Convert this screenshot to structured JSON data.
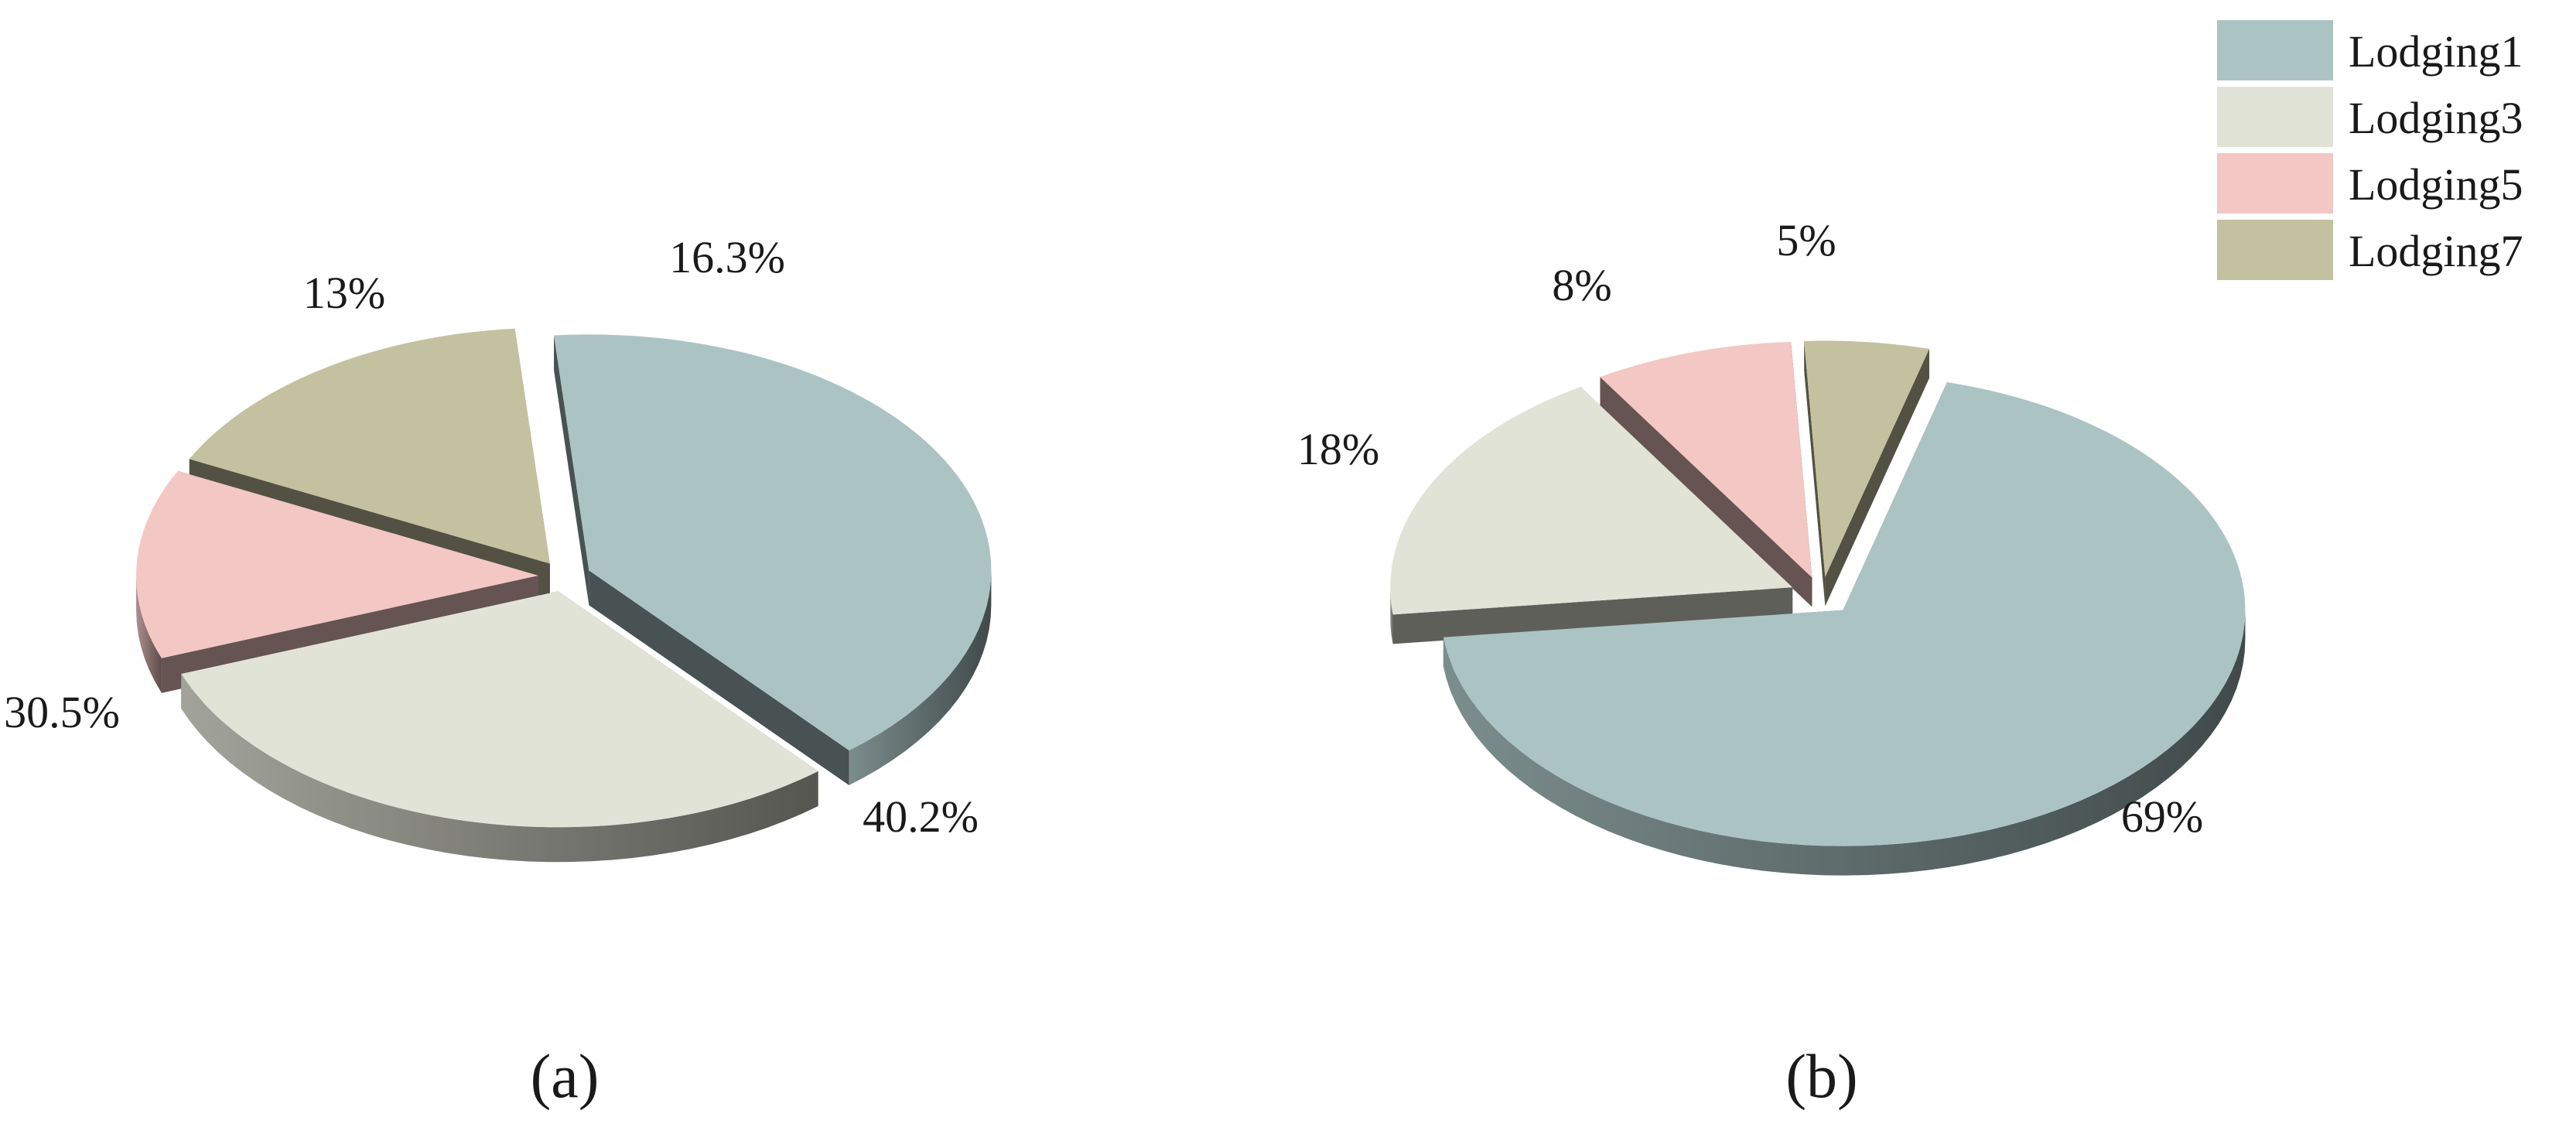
{
  "legend": {
    "items": [
      {
        "label": "Lodging1",
        "color": "#abc4c3"
      },
      {
        "label": "Lodging3",
        "color": "#e1e3d6"
      },
      {
        "label": "Lodging5",
        "color": "#f2c7c4"
      },
      {
        "label": "Lodging7",
        "color": "#c4c1a0"
      }
    ]
  },
  "chart_data": [
    {
      "type": "pie",
      "style": "3d-exploded",
      "panel_label": "(a)",
      "categories": [
        "Lodging1",
        "Lodging3",
        "Lodging5",
        "Lodging7"
      ],
      "values": [
        40.2,
        30.5,
        13,
        16.3
      ],
      "data_labels": [
        "40.2%",
        "30.5%",
        "13%",
        "16.3%"
      ]
    },
    {
      "type": "pie",
      "style": "3d-exploded",
      "panel_label": "(b)",
      "categories": [
        "Lodging1",
        "Lodging3",
        "Lodging5",
        "Lodging7"
      ],
      "values": [
        69,
        18,
        8,
        5
      ],
      "data_labels": [
        "69%",
        "18%",
        "8%",
        "5%"
      ]
    }
  ]
}
